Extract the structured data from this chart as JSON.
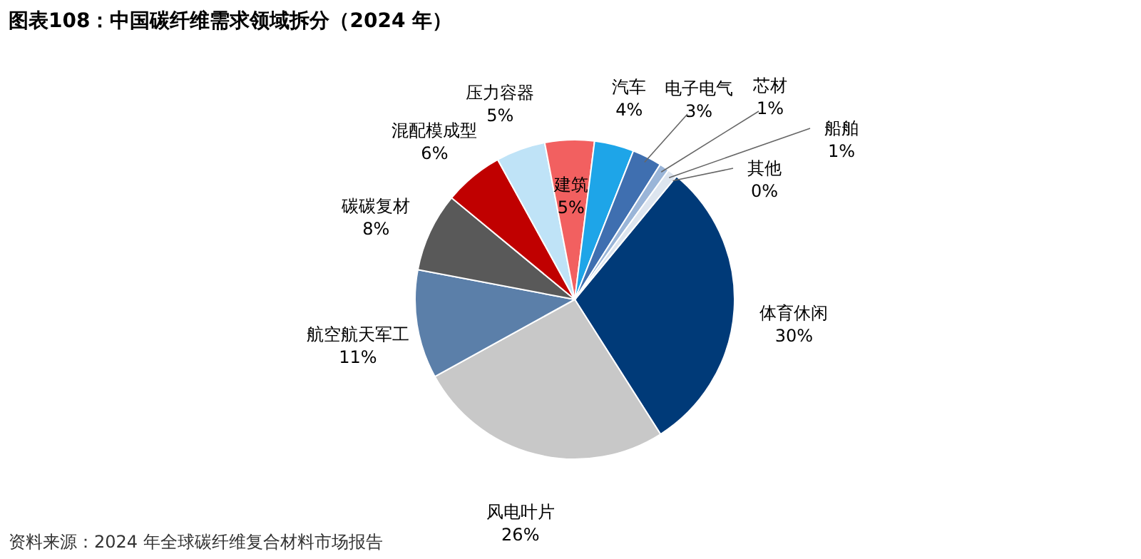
{
  "chart_data": {
    "type": "pie",
    "title": "图表108：中国碳纤维需求领域拆分（2024 年）",
    "categories": [
      "体育休闲",
      "风电叶片",
      "航空航天军工",
      "碳碳复材",
      "混配模成型",
      "压力容器",
      "建筑",
      "汽车",
      "电子电气",
      "芯材",
      "船舶",
      "其他"
    ],
    "values": [
      30,
      26,
      11,
      8,
      6,
      5,
      5,
      4,
      3,
      1,
      1,
      0
    ],
    "value_labels": [
      "30%",
      "26%",
      "11%",
      "8%",
      "6%",
      "5%",
      "5%",
      "4%",
      "3%",
      "1%",
      "1%",
      "0%"
    ],
    "colors": [
      "#003a78",
      "#c8c8c8",
      "#5b7fa9",
      "#595959",
      "#c00000",
      "#bfe3f7",
      "#f26060",
      "#1ea5e8",
      "#3f6fb0",
      "#9ab5d8",
      "#dde5ef",
      "#ffffff"
    ],
    "annotations": [
      "资料来源：2024 年全球碳纤维复合材料市场报告"
    ]
  }
}
